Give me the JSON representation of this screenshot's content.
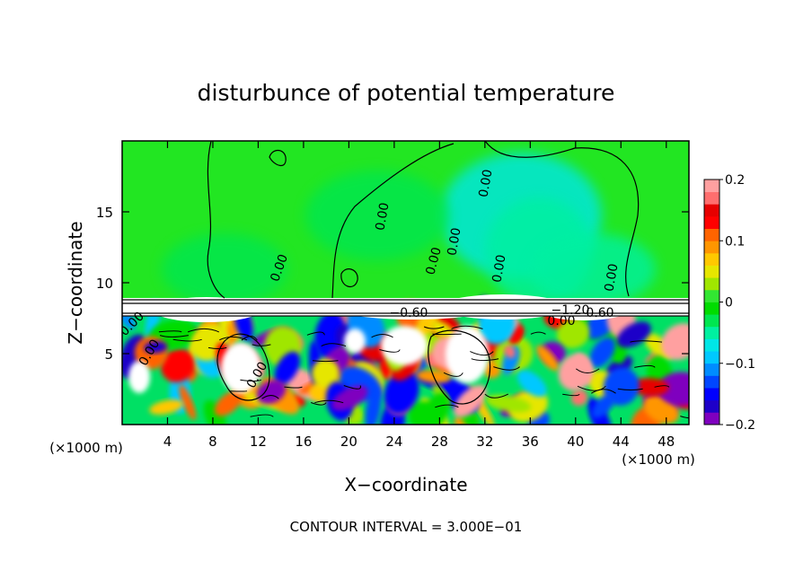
{
  "chart_data": {
    "type": "heatmap",
    "title": "disturbunce of potential temperature",
    "xlabel": "X−coordinate",
    "ylabel": "Z−coordinate",
    "x_unit": "(×1000 m)",
    "z_unit": "(×1000 m)",
    "xlim": [
      0,
      50
    ],
    "ylim": [
      0,
      20
    ],
    "x_ticks": [
      4,
      8,
      12,
      16,
      20,
      24,
      28,
      32,
      36,
      40,
      44,
      48
    ],
    "x_tick_labels": [
      "4",
      "8",
      "12",
      "16",
      "20",
      "24",
      "28",
      "32",
      "36",
      "40",
      "44",
      "48"
    ],
    "y_ticks": [
      5,
      10,
      15
    ],
    "y_tick_labels": [
      "5",
      "10",
      "15"
    ],
    "colorbar": {
      "min": -0.2,
      "max": 0.2,
      "ticks": [
        0.2,
        0.1,
        0,
        -0.1,
        -0.2
      ],
      "tick_labels": [
        "0.2",
        "0.1",
        "0",
        "−0.1",
        "−0.2"
      ],
      "colors": [
        "#7f00bf",
        "#1e00c8",
        "#0000ff",
        "#0046ff",
        "#008cff",
        "#00c8ff",
        "#00e6e6",
        "#00f0a0",
        "#00e650",
        "#00dc00",
        "#32e632",
        "#a0e600",
        "#e6e600",
        "#ffc800",
        "#ff9600",
        "#ff6400",
        "#ff0000",
        "#e60000",
        "#ff6e6e",
        "#ffa0a0"
      ]
    },
    "contour_labels": [
      "0.00",
      "0.00",
      "0.00",
      "0.00",
      "0.00",
      "0.00",
      "0.00",
      "0.00",
      "0.00",
      "−0.60",
      "−1.20",
      "0.60",
      "0.00",
      "0.00"
    ],
    "footer": "CONTOUR INTERVAL = 3.000E−01"
  }
}
